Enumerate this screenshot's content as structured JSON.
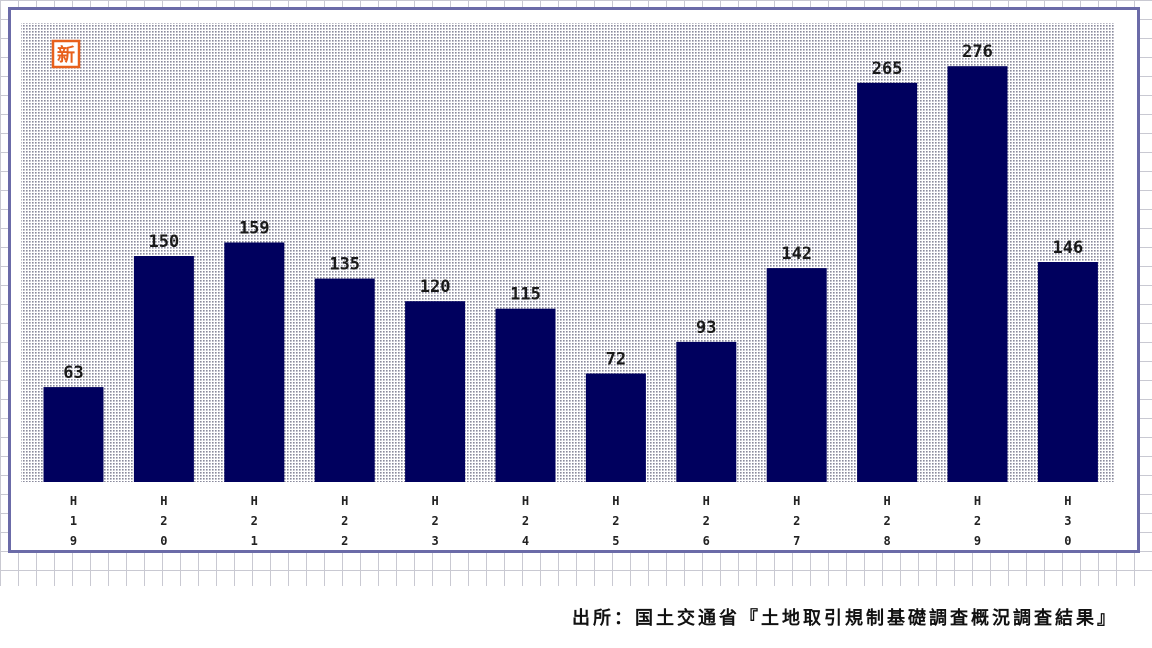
{
  "badge": {
    "text": "新",
    "color": "#e8601c"
  },
  "chart_data": {
    "type": "bar",
    "categories": [
      "H19",
      "H20",
      "H21",
      "H22",
      "H23",
      "H24",
      "H25",
      "H26",
      "H27",
      "H28",
      "H29",
      "H30"
    ],
    "tick_labels": [
      [
        "H",
        "1",
        "9"
      ],
      [
        "H",
        "2",
        "0"
      ],
      [
        "H",
        "2",
        "1"
      ],
      [
        "H",
        "2",
        "2"
      ],
      [
        "H",
        "2",
        "3"
      ],
      [
        "H",
        "2",
        "4"
      ],
      [
        "H",
        "2",
        "5"
      ],
      [
        "H",
        "2",
        "6"
      ],
      [
        "H",
        "2",
        "7"
      ],
      [
        "H",
        "2",
        "8"
      ],
      [
        "H",
        "2",
        "9"
      ],
      [
        "H",
        "3",
        "0"
      ]
    ],
    "values": [
      63,
      150,
      159,
      135,
      120,
      115,
      72,
      93,
      142,
      265,
      276,
      146
    ],
    "ylim": [
      0,
      300
    ],
    "title": "",
    "xlabel": "",
    "ylabel": "",
    "grid": false,
    "legend": "none",
    "bar_color": "#00005e",
    "plot_background": "dotted"
  },
  "source_text": "出所：国土交通省『土地取引規制基礎調査概況調査結果』"
}
